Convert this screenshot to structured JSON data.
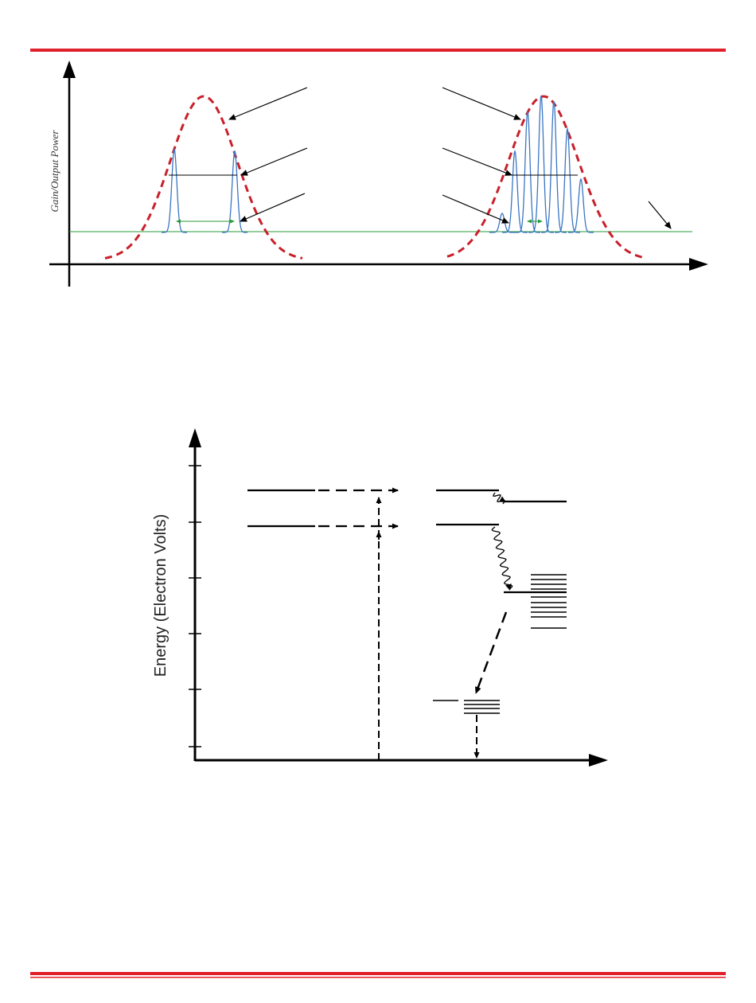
{
  "page": {
    "accent_color": "#e0202a"
  },
  "gain_diagram": {
    "ylabel": "Gain/Output Power",
    "gain_curve_color": "#c8202a",
    "mode_color": "#3a76c4",
    "threshold_color": "#2a9a3a",
    "left_panel_modes": 2,
    "right_panel_modes": 7
  },
  "energy_diagram": {
    "ylabel": "Energy (Electron Volts)",
    "axis_tick_count": 6
  }
}
